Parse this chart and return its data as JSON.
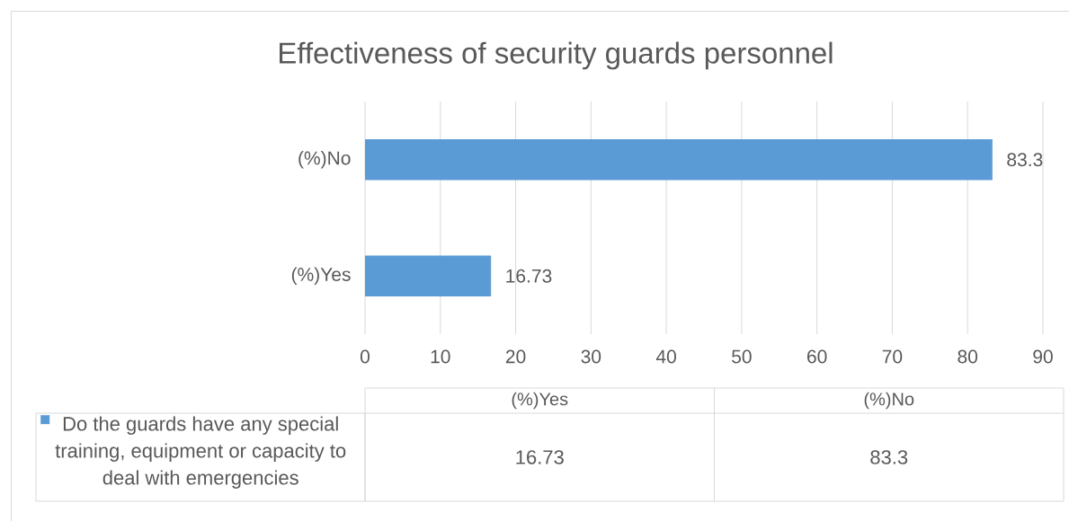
{
  "chart_data": {
    "type": "bar",
    "orientation": "horizontal",
    "title": "Effectiveness of security guards personnel",
    "categories": [
      "(%)No",
      "(%)Yes"
    ],
    "series": [
      {
        "name": "Do the guards have any special training, equipment or capacity to deal with emergencies",
        "color": "#5b9bd5",
        "values": [
          83.3,
          16.73
        ]
      }
    ],
    "xlim": [
      0,
      90
    ],
    "xticks": [
      0,
      10,
      20,
      30,
      40,
      50,
      60,
      70,
      80,
      90
    ],
    "grid": "x",
    "legend": "bottom",
    "data_labels": true,
    "annotations": [
      "16.73",
      "83.3"
    ]
  }
}
